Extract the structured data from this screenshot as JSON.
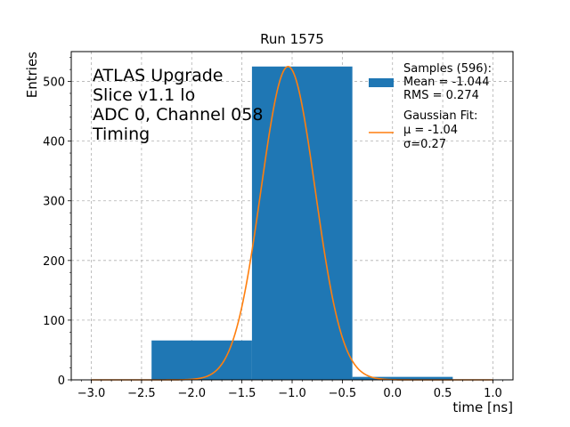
{
  "chart_data": {
    "type": "bar",
    "title": "Run 1575",
    "xlabel": "time [ns]",
    "ylabel": "Entries",
    "xlim": [
      -3.2,
      1.2
    ],
    "ylim": [
      0,
      550
    ],
    "xticks": [
      -3.0,
      -2.5,
      -2.0,
      -1.5,
      -1.0,
      -0.5,
      0.0,
      0.5,
      1.0
    ],
    "xtick_labels": [
      "−3.0",
      "−2.5",
      "−2.0",
      "−1.5",
      "−1.0",
      "−0.5",
      "0.0",
      "0.5",
      "1.0"
    ],
    "yticks": [
      0,
      100,
      200,
      300,
      400,
      500
    ],
    "ytick_labels": [
      "0",
      "100",
      "200",
      "300",
      "400",
      "500"
    ],
    "grid": true,
    "histogram": {
      "name": "Samples (596):",
      "color": "#1f77b4",
      "bins": [
        {
          "x0": -2.4,
          "x1": -1.4,
          "count": 66
        },
        {
          "x0": -1.4,
          "x1": -0.4,
          "count": 525
        },
        {
          "x0": -0.4,
          "x1": 0.6,
          "count": 5
        }
      ]
    },
    "fit": {
      "name": "Gaussian Fit:",
      "color": "#ff7f0e",
      "mean": -1.04,
      "sigma": 0.27,
      "amplitude": 525,
      "x_range": [
        -3.0,
        1.0
      ]
    },
    "annotation_lines": [
      "ATLAS Upgrade",
      "Slice v1.1 lo",
      "ADC 0, Channel 058",
      "Timing"
    ],
    "legend": {
      "position": "top-right",
      "hist_lines": [
        "Samples (596):",
        " Mean = -1.044",
        " RMS = 0.274"
      ],
      "fit_lines": [
        "Gaussian Fit:",
        " μ = -1.04",
        " σ=0.27"
      ]
    }
  }
}
